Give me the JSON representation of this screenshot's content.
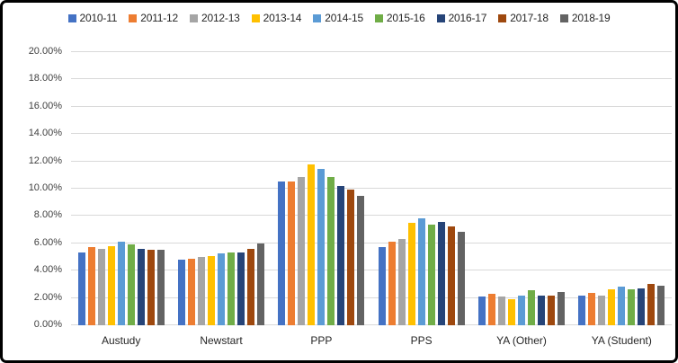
{
  "chart_data": {
    "type": "bar",
    "title": "",
    "categories": [
      "Austudy",
      "Newstart",
      "PPP",
      "PPS",
      "YA (Other)",
      "YA (Student)"
    ],
    "series": [
      {
        "name": "2010-11",
        "color": "#4472C4",
        "values": [
          5.3,
          4.8,
          10.5,
          5.7,
          2.1,
          2.2
        ]
      },
      {
        "name": "2011-12",
        "color": "#ED7D31",
        "values": [
          5.7,
          4.9,
          10.55,
          6.1,
          2.3,
          2.4
        ]
      },
      {
        "name": "2012-13",
        "color": "#A5A5A5",
        "values": [
          5.6,
          5.0,
          10.85,
          6.3,
          2.1,
          2.15
        ]
      },
      {
        "name": "2013-14",
        "color": "#FFC000",
        "values": [
          5.8,
          5.1,
          11.75,
          7.5,
          1.9,
          2.65
        ]
      },
      {
        "name": "2014-15",
        "color": "#5B9BD5",
        "values": [
          6.1,
          5.25,
          11.45,
          7.85,
          2.2,
          2.8
        ]
      },
      {
        "name": "2015-16",
        "color": "#70AD47",
        "values": [
          5.9,
          5.35,
          10.85,
          7.4,
          2.6,
          2.65
        ]
      },
      {
        "name": "2016-17",
        "color": "#264478",
        "values": [
          5.6,
          5.3,
          10.2,
          7.55,
          2.2,
          2.7
        ]
      },
      {
        "name": "2017-18",
        "color": "#9E480E",
        "values": [
          5.5,
          5.6,
          9.95,
          7.25,
          2.15,
          3.0
        ]
      },
      {
        "name": "2018-19",
        "color": "#636363",
        "values": [
          5.5,
          6.0,
          9.45,
          6.85,
          2.45,
          2.9
        ]
      }
    ],
    "xlabel": "",
    "ylabel": "",
    "ylim": [
      0,
      20
    ],
    "ytick_step": 2,
    "ytick_labels": [
      "0.00%",
      "2.00%",
      "4.00%",
      "6.00%",
      "8.00%",
      "10.00%",
      "12.00%",
      "14.00%",
      "16.00%",
      "18.00%",
      "20.00%"
    ],
    "grid": true,
    "gridline_color": "#d9d9d9",
    "legend_position": "top"
  }
}
